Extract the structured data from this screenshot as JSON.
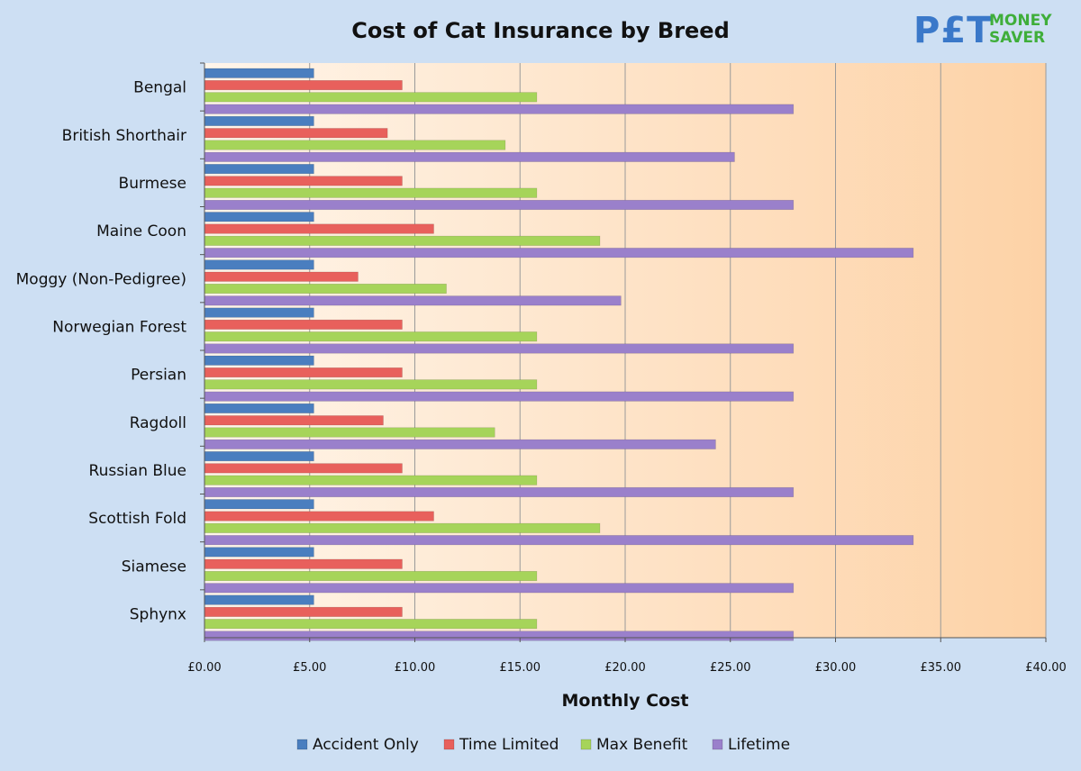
{
  "logo": {
    "pet": "P£T",
    "money": "MONEY",
    "saver": "SAVER"
  },
  "chart_data": {
    "type": "bar",
    "orientation": "horizontal",
    "title": "Cost of Cat Insurance by Breed",
    "xlabel": "Monthly Cost",
    "ylabel": "",
    "xlim": [
      0,
      40
    ],
    "xtick_step": 5,
    "xtick_labels": [
      "£0.00",
      "£5.00",
      "£10.00",
      "£15.00",
      "£20.00",
      "£25.00",
      "£30.00",
      "£35.00",
      "£40.00"
    ],
    "grid": "vertical",
    "legend_position": "bottom",
    "categories": [
      "Bengal",
      "British Shorthair",
      "Burmese",
      "Maine Coon",
      "Moggy (Non-Pedigree)",
      "Norwegian Forest",
      "Persian",
      "Ragdoll",
      "Russian Blue",
      "Scottish Fold",
      "Siamese",
      "Sphynx"
    ],
    "series": [
      {
        "name": "Accident Only",
        "color": "#4a7ebf",
        "values": [
          5.2,
          5.2,
          5.2,
          5.2,
          5.2,
          5.2,
          5.2,
          5.2,
          5.2,
          5.2,
          5.2,
          5.2
        ]
      },
      {
        "name": "Time Limited",
        "color": "#e8605c",
        "values": [
          9.4,
          8.7,
          9.4,
          10.9,
          7.3,
          9.4,
          9.4,
          8.5,
          9.4,
          10.9,
          9.4,
          9.4
        ]
      },
      {
        "name": "Max Benefit",
        "color": "#a6d45a",
        "values": [
          15.8,
          14.3,
          15.8,
          18.8,
          11.5,
          15.8,
          15.8,
          13.8,
          15.8,
          18.8,
          15.8,
          15.8
        ]
      },
      {
        "name": "Lifetime",
        "color": "#9a80cb",
        "values": [
          28.0,
          25.2,
          28.0,
          33.7,
          19.8,
          28.0,
          28.0,
          24.3,
          28.0,
          33.7,
          28.0,
          28.0
        ]
      }
    ]
  }
}
